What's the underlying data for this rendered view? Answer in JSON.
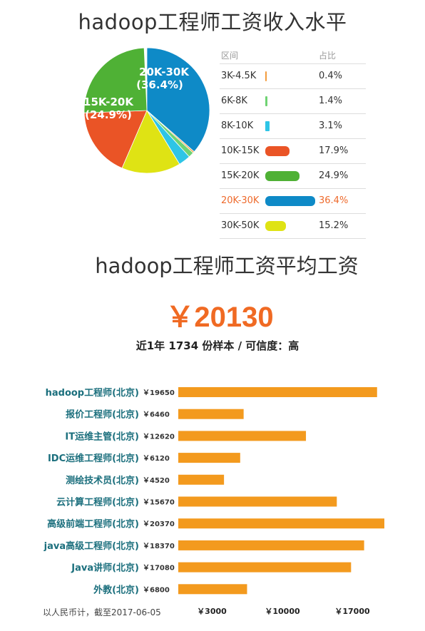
{
  "title_distribution": "hadoop工程师工资收入水平",
  "table_header": {
    "range": "区间",
    "share": "占比"
  },
  "distribution": [
    {
      "range": "3K-4.5K",
      "share_label": "0.4%",
      "share": 0.4,
      "color": "#f39c3d"
    },
    {
      "range": "6K-8K",
      "share_label": "1.4%",
      "share": 1.4,
      "color": "#6fd373"
    },
    {
      "range": "8K-10K",
      "share_label": "3.1%",
      "share": 3.1,
      "color": "#2ec5e6"
    },
    {
      "range": "10K-15K",
      "share_label": "17.9%",
      "share": 17.9,
      "color": "#ea5426"
    },
    {
      "range": "15K-20K",
      "share_label": "24.9%",
      "share": 24.9,
      "color": "#4fb135"
    },
    {
      "range": "20K-30K",
      "share_label": "36.4%",
      "share": 36.4,
      "color": "#0e8ac7",
      "highlight": true
    },
    {
      "range": "30K-50K",
      "share_label": "15.2%",
      "share": 15.2,
      "color": "#dfe314"
    }
  ],
  "pie_labels": {
    "a_range": "20K-30K",
    "a_pct": "(36.4%)",
    "b_range": "15K-20K",
    "b_pct": "(24.9%)"
  },
  "title_average": "hadoop工程师工资平均工资",
  "average_salary": "￥20130",
  "sample_info": "近1年 1734 份样本 / 可信度：高",
  "bar_color": "#f39a1e",
  "chart_data": {
    "type": "bar",
    "orientation": "horizontal",
    "categories": [
      "hadoop工程师(北京)",
      "报价工程师(北京)",
      "IT运维主管(北京)",
      "IDC运维工程师(北京)",
      "测绘技术员(北京)",
      "云计算工程师(北京)",
      "高级前端工程师(北京)",
      "java高级工程师(北京)",
      "Java讲师(北京)",
      "外教(北京)"
    ],
    "values": [
      19650,
      6460,
      12620,
      6120,
      4520,
      15670,
      20370,
      18370,
      17080,
      6800
    ],
    "value_labels": [
      "￥19650",
      "￥6460",
      "￥12620",
      "￥6120",
      "￥4520",
      "￥15670",
      "￥20370",
      "￥18370",
      "￥17080",
      "￥6800"
    ],
    "xticks": [
      3000,
      10000,
      17000
    ],
    "xtick_labels": [
      "￥3000",
      "￥10000",
      "￥17000"
    ],
    "xlim": [
      0,
      20370
    ]
  },
  "footnote": "以人民币计，截至2017-06-05"
}
